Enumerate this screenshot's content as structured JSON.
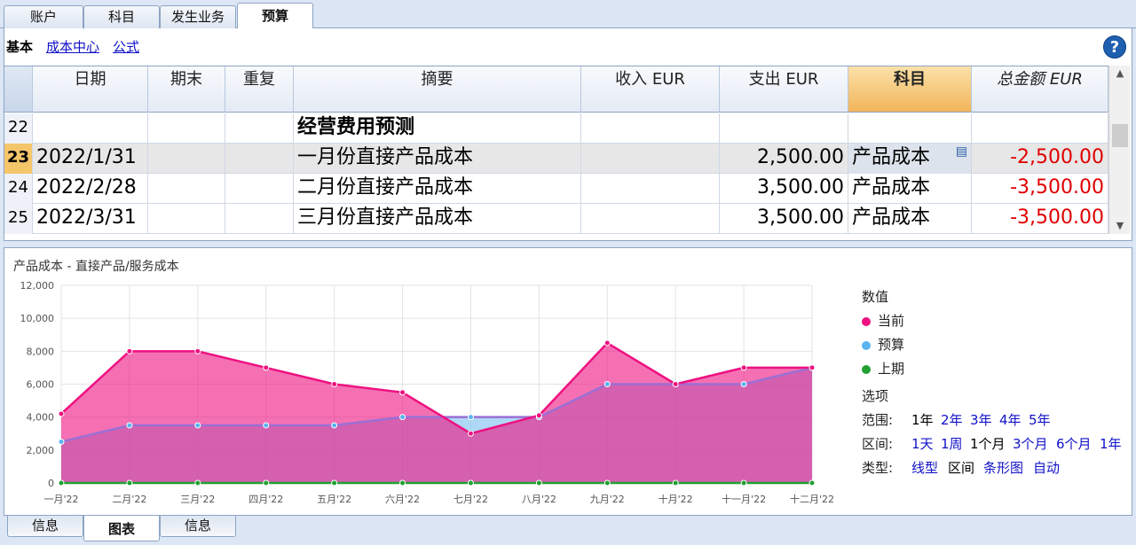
{
  "top_tabs": [
    {
      "label": "账户"
    },
    {
      "label": "科目"
    },
    {
      "label": "发生业务"
    },
    {
      "label": "预算",
      "active": true
    }
  ],
  "subnav": {
    "current": "基本",
    "links": [
      "成本中心",
      "公式"
    ]
  },
  "help_icon": "question-circle-icon",
  "table": {
    "headers": {
      "date": "日期",
      "period_end": "期末",
      "repeat": "重复",
      "description": "摘要",
      "income": "收入 EUR",
      "expense": "支出 EUR",
      "account": "科目",
      "total": "总金额 EUR"
    },
    "rows": [
      {
        "num": "22",
        "date": "",
        "period_end": "",
        "repeat": "",
        "description": "经营费用预测",
        "income": "",
        "expense": "",
        "account": "",
        "total": "",
        "bold": true
      },
      {
        "num": "23",
        "date": "2022/1/31",
        "period_end": "",
        "repeat": "",
        "description": "一月份直接产品成本",
        "income": "",
        "expense": "2,500.00",
        "account": "产品成本",
        "total": "-2,500.00",
        "current": true
      },
      {
        "num": "24",
        "date": "2022/2/28",
        "period_end": "",
        "repeat": "",
        "description": "二月份直接产品成本",
        "income": "",
        "expense": "3,500.00",
        "account": "产品成本",
        "total": "-3,500.00"
      },
      {
        "num": "25",
        "date": "2022/3/31",
        "period_end": "",
        "repeat": "",
        "description": "三月份直接产品成本",
        "income": "",
        "expense": "3,500.00",
        "account": "产品成本",
        "total": "-3,500.00"
      }
    ]
  },
  "chart_title": "产品成本 - 直接产品/服务成本",
  "chart_data": {
    "type": "area",
    "categories": [
      "一月'22",
      "二月'22",
      "三月'22",
      "四月'22",
      "五月'22",
      "六月'22",
      "七月'22",
      "八月'22",
      "九月'22",
      "十月'22",
      "十一月'22",
      "十二月'22"
    ],
    "ylim": [
      0,
      12000
    ],
    "yticks": [
      "0",
      "2,000",
      "4,000",
      "6,000",
      "8,000",
      "10,000",
      "12,000"
    ],
    "grid": true,
    "legend_position": "right",
    "series": [
      {
        "name": "当前",
        "color": "#ee1180",
        "values": [
          4200,
          8000,
          8000,
          7000,
          6000,
          5500,
          3000,
          4100,
          8500,
          6000,
          7000,
          7000
        ]
      },
      {
        "name": "预算",
        "color": "#5ab4f0",
        "values": [
          2500,
          3500,
          3500,
          3500,
          3500,
          4000,
          4000,
          4000,
          6000,
          6000,
          6000,
          7000
        ]
      },
      {
        "name": "上期",
        "color": "#22a033",
        "values": [
          0,
          0,
          0,
          0,
          0,
          0,
          0,
          0,
          0,
          0,
          0,
          0
        ]
      }
    ]
  },
  "legend": {
    "values_label": "数值",
    "options_label": "选项",
    "range_label": "范围:",
    "range_options": [
      "1年",
      "2年",
      "3年",
      "4年",
      "5年"
    ],
    "interval_label": "区间:",
    "interval_options": [
      "1天",
      "1周",
      "1个月",
      "3个月",
      "6个月",
      "1年"
    ],
    "type_label": "类型:",
    "type_options": [
      "线型",
      "区间",
      "条形图",
      "自动"
    ]
  },
  "bottom_tabs": [
    {
      "label": "信息"
    },
    {
      "label": "图表",
      "active": true
    },
    {
      "label": "信息"
    }
  ]
}
